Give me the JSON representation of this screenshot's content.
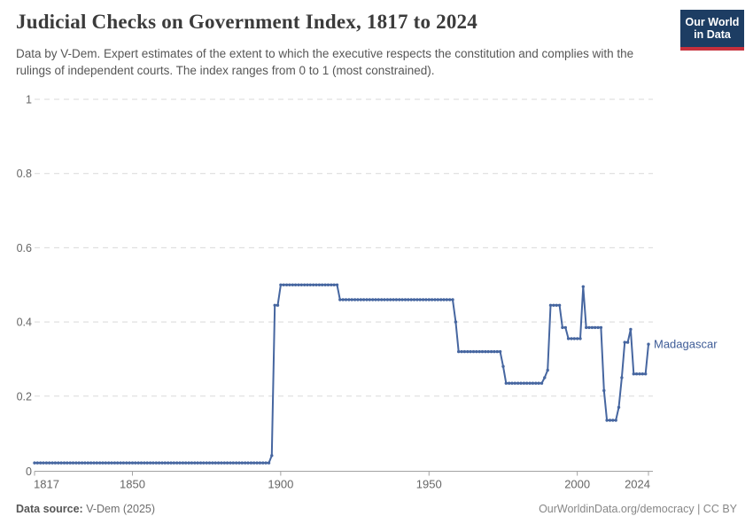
{
  "header": {
    "title": "Judicial Checks on Government Index, 1817 to 2024",
    "subtitle": "Data by V-Dem. Expert estimates of the extent to which the executive respects the constitution and complies with the rulings of independent courts. The index ranges from 0 to 1 (most constrained).",
    "logo": {
      "line1": "Our World",
      "line2": "in Data",
      "bg_color": "#1d3d63",
      "stripe_color": "#c7303c"
    }
  },
  "footer": {
    "source_label": "Data source:",
    "source_value": "V-Dem (2025)",
    "credit": "OurWorldinData.org/democracy | CC BY"
  },
  "chart_data": {
    "type": "line",
    "title": "Judicial Checks on Government Index, 1817 to 2024",
    "series_name": "Madagascar",
    "line_color": "#4666a0",
    "label_color": "#3d5b96",
    "grid_color": "#d9d9d9",
    "axis_color": "#a3a3a3",
    "tick_text_color": "#666666",
    "grid": "dashed-horizontal",
    "legend_position": "end-of-line-label",
    "x_axis": {
      "label": "",
      "range": [
        1817,
        2024
      ],
      "ticks": [
        "1817",
        "1850",
        "1900",
        "1950",
        "2000",
        "2024"
      ],
      "tick_values": [
        1817,
        1850,
        1900,
        1950,
        2000,
        2024
      ]
    },
    "y_axis": {
      "label": "",
      "range": [
        0,
        1
      ],
      "ticks": [
        "0",
        "0.2",
        "0.4",
        "0.6",
        "0.8",
        "1"
      ],
      "tick_values": [
        0,
        0.2,
        0.4,
        0.6,
        0.8,
        1
      ]
    },
    "series": [
      {
        "name": "Madagascar",
        "segments": [
          {
            "from": 1817,
            "to": 1896,
            "value": 0.02
          },
          {
            "from": 1897,
            "to": 1897,
            "value": 0.04
          },
          {
            "from": 1898,
            "to": 1899,
            "value": 0.445
          },
          {
            "from": 1900,
            "to": 1919,
            "value": 0.5
          },
          {
            "from": 1920,
            "to": 1958,
            "value": 0.46
          },
          {
            "from": 1959,
            "to": 1959,
            "value": 0.4
          },
          {
            "from": 1960,
            "to": 1974,
            "value": 0.32
          },
          {
            "from": 1975,
            "to": 1975,
            "value": 0.28
          },
          {
            "from": 1976,
            "to": 1988,
            "value": 0.235
          },
          {
            "from": 1989,
            "to": 1989,
            "value": 0.25
          },
          {
            "from": 1990,
            "to": 1990,
            "value": 0.27
          },
          {
            "from": 1991,
            "to": 1994,
            "value": 0.445
          },
          {
            "from": 1995,
            "to": 1996,
            "value": 0.385
          },
          {
            "from": 1997,
            "to": 2001,
            "value": 0.355
          },
          {
            "from": 2002,
            "to": 2002,
            "value": 0.495
          },
          {
            "from": 2003,
            "to": 2008,
            "value": 0.385
          },
          {
            "from": 2009,
            "to": 2009,
            "value": 0.215
          },
          {
            "from": 2010,
            "to": 2013,
            "value": 0.135
          },
          {
            "from": 2014,
            "to": 2014,
            "value": 0.17
          },
          {
            "from": 2015,
            "to": 2015,
            "value": 0.25
          },
          {
            "from": 2016,
            "to": 2017,
            "value": 0.345
          },
          {
            "from": 2018,
            "to": 2018,
            "value": 0.38
          },
          {
            "from": 2019,
            "to": 2023,
            "value": 0.26
          },
          {
            "from": 2024,
            "to": 2024,
            "value": 0.34
          }
        ]
      }
    ]
  }
}
